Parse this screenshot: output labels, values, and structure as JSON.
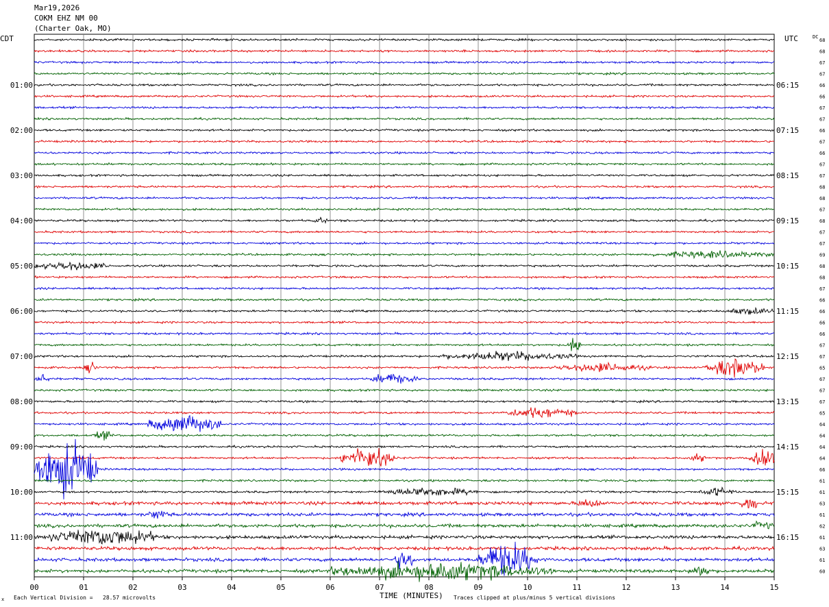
{
  "header": {
    "date": "Mar19,2026",
    "station": "COKM EHZ NM 00",
    "location": "(Charter Oak, MO)"
  },
  "axes": {
    "left_label": "CDT",
    "right_label": "UTC",
    "dc_label": "DC",
    "x_title": "TIME (MINUTES)"
  },
  "footer": {
    "scale_note": "Each Vertical Division =   28.57 microvolts",
    "clip_note": "Traces clipped at plus/minus 5 vertical divisions"
  },
  "chart_data": {
    "type": "line",
    "title": "COKM EHZ NM 00",
    "xlabel": "TIME (MINUTES)",
    "ylabel": "",
    "xlim": [
      0,
      15
    ],
    "x_ticks": [
      "00",
      "01",
      "02",
      "03",
      "04",
      "05",
      "06",
      "07",
      "08",
      "09",
      "10",
      "11",
      "12",
      "13",
      "14",
      "15"
    ],
    "grid": true,
    "trace_colors": [
      "#000000",
      "#e00000",
      "#0000dd",
      "#006000"
    ],
    "left_hour_labels": [
      "01:00",
      "02:00",
      "03:00",
      "04:00",
      "05:00",
      "06:00",
      "07:00",
      "08:00",
      "09:00",
      "10:00",
      "11:00"
    ],
    "right_hour_labels": [
      "06:15",
      "07:15",
      "08:15",
      "09:15",
      "10:15",
      "11:15",
      "12:15",
      "13:15",
      "14:15",
      "15:15",
      "16:15"
    ],
    "dc_offsets": [
      68,
      68,
      67,
      67,
      66,
      66,
      67,
      67,
      66,
      67,
      66,
      67,
      67,
      68,
      68,
      67,
      68,
      67,
      67,
      69,
      68,
      68,
      67,
      66,
      66,
      66,
      66,
      67,
      67,
      65,
      67,
      67,
      67,
      65,
      64,
      64,
      64,
      64,
      66,
      61,
      61,
      63,
      61,
      62,
      61,
      63,
      61,
      60
    ],
    "events": [
      {
        "trace": 16,
        "start_min": 5.6,
        "end_min": 6.0,
        "amplitude": 3
      },
      {
        "trace": 19,
        "start_min": 12.5,
        "end_min": 15.0,
        "amplitude": 4
      },
      {
        "trace": 20,
        "start_min": 0.0,
        "end_min": 1.5,
        "amplitude": 5
      },
      {
        "trace": 24,
        "start_min": 14.0,
        "end_min": 15.0,
        "amplitude": 4
      },
      {
        "trace": 27,
        "start_min": 10.8,
        "end_min": 11.1,
        "amplitude": 9
      },
      {
        "trace": 28,
        "start_min": 8.2,
        "end_min": 11.0,
        "amplitude": 5
      },
      {
        "trace": 29,
        "start_min": 1.0,
        "end_min": 1.3,
        "amplitude": 6
      },
      {
        "trace": 29,
        "start_min": 10.5,
        "end_min": 12.5,
        "amplitude": 5
      },
      {
        "trace": 29,
        "start_min": 13.6,
        "end_min": 14.8,
        "amplitude": 10
      },
      {
        "trace": 30,
        "start_min": 0.0,
        "end_min": 0.3,
        "amplitude": 6
      },
      {
        "trace": 30,
        "start_min": 6.8,
        "end_min": 7.8,
        "amplitude": 6
      },
      {
        "trace": 33,
        "start_min": 9.5,
        "end_min": 11.0,
        "amplitude": 6
      },
      {
        "trace": 34,
        "start_min": 2.3,
        "end_min": 3.8,
        "amplitude": 10
      },
      {
        "trace": 35,
        "start_min": 1.2,
        "end_min": 1.6,
        "amplitude": 5
      },
      {
        "trace": 37,
        "start_min": 6.2,
        "end_min": 7.3,
        "amplitude": 12
      },
      {
        "trace": 37,
        "start_min": 13.3,
        "end_min": 13.6,
        "amplitude": 5
      },
      {
        "trace": 37,
        "start_min": 14.5,
        "end_min": 15.0,
        "amplitude": 14
      },
      {
        "trace": 38,
        "start_min": 0.0,
        "end_min": 1.3,
        "amplitude": 28
      },
      {
        "trace": 40,
        "start_min": 7.0,
        "end_min": 9.0,
        "amplitude": 5
      },
      {
        "trace": 40,
        "start_min": 13.5,
        "end_min": 14.2,
        "amplitude": 5
      },
      {
        "trace": 41,
        "start_min": 11.0,
        "end_min": 11.5,
        "amplitude": 6
      },
      {
        "trace": 41,
        "start_min": 14.3,
        "end_min": 14.7,
        "amplitude": 8
      },
      {
        "trace": 42,
        "start_min": 2.3,
        "end_min": 2.7,
        "amplitude": 6
      },
      {
        "trace": 43,
        "start_min": 14.5,
        "end_min": 15.0,
        "amplitude": 5
      },
      {
        "trace": 44,
        "start_min": 0.3,
        "end_min": 2.5,
        "amplitude": 10
      },
      {
        "trace": 46,
        "start_min": 7.3,
        "end_min": 7.7,
        "amplitude": 12
      },
      {
        "trace": 46,
        "start_min": 9.0,
        "end_min": 10.2,
        "amplitude": 18
      },
      {
        "trace": 47,
        "start_min": 6.0,
        "end_min": 10.5,
        "amplitude": 10
      },
      {
        "trace": 47,
        "start_min": 13.3,
        "end_min": 13.7,
        "amplitude": 8
      }
    ]
  }
}
